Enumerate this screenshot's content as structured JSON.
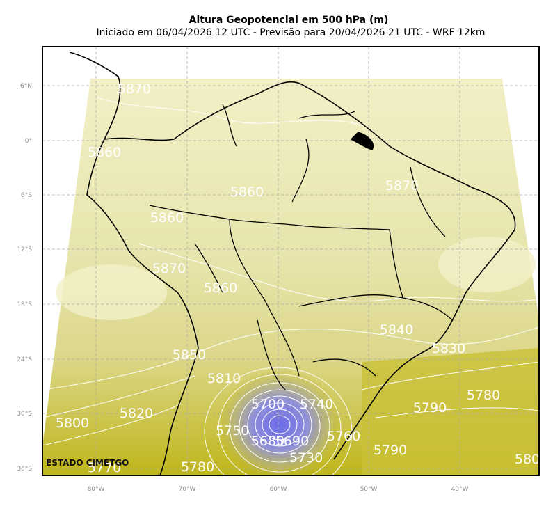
{
  "title": "Altura Geopotencial em 500 hPa (m)",
  "subtitle": "Iniciado em 06/04/2026 12 UTC - Previsão para 20/04/2026 21 UTC - WRF 12km",
  "latitude_labels": [
    "6°N",
    "0°",
    "6°S",
    "12°S",
    "18°S",
    "24°S",
    "30°S",
    "36°S"
  ],
  "longitude_labels": [
    "80°W",
    "70°W",
    "60°W",
    "50°W",
    "40°W"
  ],
  "contour_labels": [
    "5870",
    "5860",
    "5860",
    "5870",
    "5860",
    "5870",
    "5860",
    "5840",
    "5830",
    "5850",
    "5810",
    "5820",
    "5800",
    "5790",
    "5780",
    "5750",
    "5760",
    "5790",
    "5730",
    "5780",
    "5770",
    "580",
    "5700",
    "5690",
    "5680",
    "5740"
  ],
  "credit": "ESTADO CIMETGO"
}
